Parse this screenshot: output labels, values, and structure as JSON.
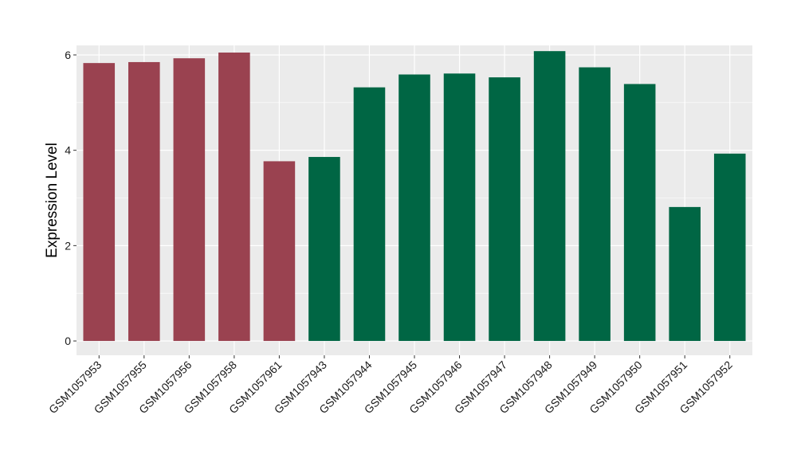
{
  "chart_data": {
    "type": "bar",
    "title": "",
    "xlabel": "",
    "ylabel": "Expression Level",
    "ylim": [
      -0.3,
      6.2
    ],
    "yticks": [
      0,
      2,
      4,
      6
    ],
    "grid": true,
    "legend": "none",
    "panel_background": "#ebebeb",
    "grid_color": "#ffffff",
    "categories": [
      "GSM1057953",
      "GSM1057955",
      "GSM1057956",
      "GSM1057958",
      "GSM1057961",
      "GSM1057943",
      "GSM1057944",
      "GSM1057945",
      "GSM1057946",
      "GSM1057947",
      "GSM1057948",
      "GSM1057949",
      "GSM1057950",
      "GSM1057951",
      "GSM1057952"
    ],
    "values": [
      5.83,
      5.85,
      5.93,
      6.05,
      3.77,
      3.86,
      5.32,
      5.59,
      5.61,
      5.53,
      6.08,
      5.74,
      5.39,
      2.81,
      3.93
    ],
    "bar_colors": [
      "#9a4250",
      "#9a4250",
      "#9a4250",
      "#9a4250",
      "#9a4250",
      "#006644",
      "#006644",
      "#006644",
      "#006644",
      "#006644",
      "#006644",
      "#006644",
      "#006644",
      "#006644",
      "#006644"
    ]
  }
}
